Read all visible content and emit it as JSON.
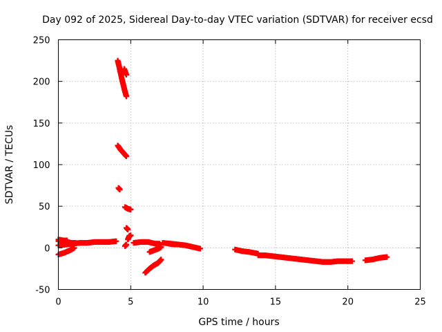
{
  "chart_data": {
    "type": "scatter",
    "title": "Day 092 of 2025, Sidereal Day-to-day VTEC variation (SDTVAR) for receiver ecsd",
    "xlabel": "GPS time / hours",
    "ylabel": "SDTVAR / TECUs",
    "xlim": [
      0,
      25
    ],
    "ylim": [
      -50,
      250
    ],
    "xticks": [
      0,
      5,
      10,
      15,
      20,
      25
    ],
    "yticks": [
      -50,
      0,
      50,
      100,
      150,
      200,
      250
    ],
    "grid": true,
    "marker": "+",
    "color": "#ff0000",
    "series": [
      {
        "name": "SDTVAR",
        "segments": [
          {
            "x": [
              0.0,
              0.5,
              1.0,
              1.5,
              2.0,
              2.5,
              3.0,
              3.5,
              4.0
            ],
            "y": [
              3,
              4,
              5,
              6,
              6,
              7,
              7,
              7,
              8
            ]
          },
          {
            "x": [
              0.0,
              0.3,
              0.6,
              0.9,
              1.2
            ],
            "y": [
              8,
              8,
              7,
              6,
              6
            ]
          },
          {
            "x": [
              0.0,
              0.4,
              0.8,
              1.1
            ],
            "y": [
              -8,
              -6,
              -3,
              0
            ]
          },
          {
            "x": [
              0.0,
              0.3,
              0.6
            ],
            "y": [
              10,
              9,
              9
            ]
          },
          {
            "x": [
              4.1,
              4.2,
              4.3,
              4.4,
              4.5,
              4.6,
              4.7
            ],
            "y": [
              225,
              218,
              210,
              202,
              195,
              188,
              182
            ]
          },
          {
            "x": [
              4.7,
              4.6,
              4.55
            ],
            "y": [
              208,
              212,
              215
            ]
          },
          {
            "x": [
              4.1,
              4.3,
              4.5,
              4.7
            ],
            "y": [
              123,
              118,
              114,
              110
            ]
          },
          {
            "x": [
              4.15,
              4.25
            ],
            "y": [
              72,
              70
            ]
          },
          {
            "x": [
              4.6,
              4.8,
              5.0
            ],
            "y": [
              49,
              47,
              46
            ]
          },
          {
            "x": [
              4.7,
              4.8
            ],
            "y": [
              24,
              22
            ]
          },
          {
            "x": [
              4.8,
              4.9,
              5.0
            ],
            "y": [
              10,
              14,
              15
            ]
          },
          {
            "x": [
              4.6,
              4.7
            ],
            "y": [
              2,
              4
            ]
          },
          {
            "x": [
              5.2,
              5.7,
              6.2,
              6.7,
              7.0
            ],
            "y": [
              6,
              7,
              7,
              5,
              5
            ]
          },
          {
            "x": [
              6.0,
              6.3,
              6.6,
              6.9,
              7.1
            ],
            "y": [
              -30,
              -25,
              -21,
              -18,
              -14
            ]
          },
          {
            "x": [
              6.3,
              6.6,
              6.9,
              7.1
            ],
            "y": [
              -5,
              -3,
              -1,
              1
            ]
          },
          {
            "x": [
              7.2,
              7.8,
              8.3,
              8.8,
              9.3,
              9.8
            ],
            "y": [
              6,
              5,
              4,
              3,
              1,
              -1
            ]
          },
          {
            "x": [
              7.6,
              8.1
            ],
            "y": [
              5,
              4
            ]
          },
          {
            "x": [
              12.2,
              12.7,
              13.2,
              13.8
            ],
            "y": [
              -2,
              -4,
              -5,
              -7
            ]
          },
          {
            "x": [
              13.8,
              14.3,
              14.8,
              15.3,
              15.8,
              16.3,
              16.8
            ],
            "y": [
              -9,
              -9,
              -10,
              -11,
              -12,
              -13,
              -14
            ]
          },
          {
            "x": [
              16.8,
              17.3,
              17.8,
              18.3,
              18.8,
              19.3,
              19.8,
              20.3
            ],
            "y": [
              -14,
              -15,
              -16,
              -17,
              -17,
              -16,
              -16,
              -16
            ]
          },
          {
            "x": [
              21.2,
              21.7,
              22.2,
              22.7
            ],
            "y": [
              -15,
              -14,
              -12,
              -11
            ]
          }
        ]
      }
    ]
  }
}
